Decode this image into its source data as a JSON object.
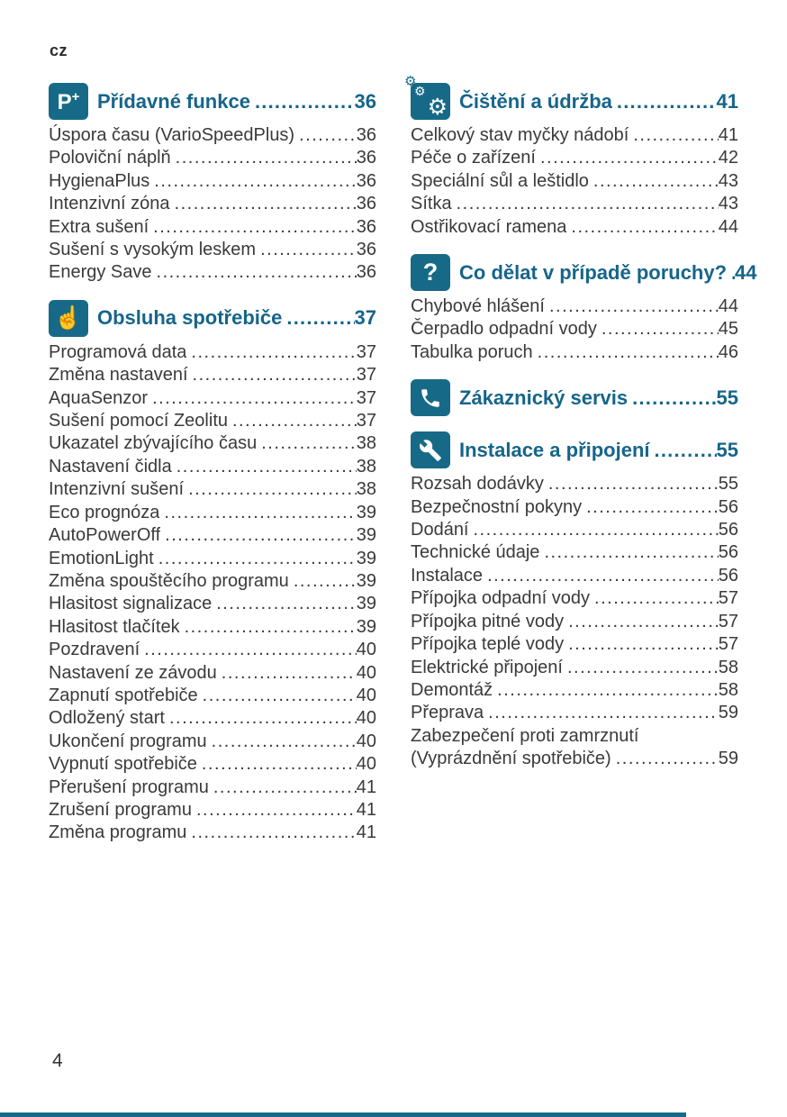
{
  "page": {
    "lang_label": "cz",
    "page_number": "4"
  },
  "colors": {
    "accent": "#176a87",
    "header_text": "#15658a",
    "body_text": "#3a3a3a"
  },
  "icons": {
    "p-plus-icon": "P+",
    "hand-press-icon": "☝",
    "gears-icon": "⚙",
    "question-mark-icon": "?"
  },
  "toc": {
    "columns": [
      {
        "sections": [
          {
            "id": "additional-functions",
            "icon": "p-plus-icon",
            "title": "Přídavné funkce",
            "page": "36",
            "entries": [
              {
                "label": "Úspora času (VarioSpeedPlus)",
                "page": "36"
              },
              {
                "label": "Poloviční náplň",
                "page": "36"
              },
              {
                "label": "HygienaPlus",
                "page": "36"
              },
              {
                "label": "Intenzivní zóna",
                "page": "36"
              },
              {
                "label": "Extra sušení",
                "page": "36"
              },
              {
                "label": "Sušení s vysokým leskem",
                "page": "36"
              },
              {
                "label": "Energy Save",
                "page": "36"
              }
            ]
          },
          {
            "id": "operating-appliance",
            "icon": "hand-press-icon",
            "title": "Obsluha spotřebiče",
            "page": "37",
            "entries": [
              {
                "label": "Programová data",
                "page": "37"
              },
              {
                "label": "Změna nastavení",
                "page": "37"
              },
              {
                "label": "AquaSenzor",
                "page": "37"
              },
              {
                "label": "Sušení pomocí Zeolitu",
                "page": "37"
              },
              {
                "label": "Ukazatel zbývajícího času",
                "page": "38"
              },
              {
                "label": "Nastavení čidla",
                "page": "38"
              },
              {
                "label": "Intenzivní sušení",
                "page": "38"
              },
              {
                "label": "Eco prognóza",
                "page": "39"
              },
              {
                "label": "AutoPowerOff",
                "page": "39"
              },
              {
                "label": "EmotionLight",
                "page": "39"
              },
              {
                "label": "Změna spouštěcího programu",
                "page": "39"
              },
              {
                "label": "Hlasitost signalizace",
                "page": "39"
              },
              {
                "label": "Hlasitost tlačítek",
                "page": "39"
              },
              {
                "label": "Pozdravení",
                "page": "40"
              },
              {
                "label": "Nastavení ze závodu",
                "page": "40"
              },
              {
                "label": "Zapnutí spotřebiče",
                "page": "40"
              },
              {
                "label": "Odložený start",
                "page": "40"
              },
              {
                "label": "Ukončení programu",
                "page": "40"
              },
              {
                "label": "Vypnutí spotřebiče",
                "page": "40"
              },
              {
                "label": "Přerušení programu",
                "page": "41"
              },
              {
                "label": "Zrušení programu",
                "page": "41"
              },
              {
                "label": "Změna programu",
                "page": "41"
              }
            ]
          }
        ]
      },
      {
        "sections": [
          {
            "id": "cleaning-maintenance",
            "icon": "gears-icon",
            "title": "Čištění a údržba",
            "page": "41",
            "entries": [
              {
                "label": "Celkový stav myčky nádobí",
                "page": "41"
              },
              {
                "label": "Péče o zařízení",
                "page": "42"
              },
              {
                "label": "Speciální sůl a leštidlo",
                "page": "43"
              },
              {
                "label": "Sítka",
                "page": "43"
              },
              {
                "label": "Ostřikovací ramena",
                "page": "44"
              }
            ]
          },
          {
            "id": "fault-help",
            "icon": "question-mark-icon",
            "title": "Co dělat v případě poruchy?",
            "page": "44",
            "entries": [
              {
                "label": "Chybové hlášení",
                "page": "44"
              },
              {
                "label": "Čerpadlo odpadní vody",
                "page": "45"
              },
              {
                "label": "Tabulka poruch",
                "page": "46"
              }
            ]
          },
          {
            "id": "customer-service",
            "icon": "phone-icon",
            "title": "Zákaznický servis",
            "page": "55",
            "entries": []
          },
          {
            "id": "installation-connection",
            "icon": "wrench-icon",
            "title": "Instalace a připojení",
            "page": "55",
            "entries": [
              {
                "label": "Rozsah dodávky",
                "page": "55"
              },
              {
                "label": "Bezpečnostní pokyny",
                "page": "56"
              },
              {
                "label": "Dodání",
                "page": "56"
              },
              {
                "label": "Technické údaje",
                "page": "56"
              },
              {
                "label": "Instalace",
                "page": "56"
              },
              {
                "label": "Přípojka odpadní vody",
                "page": "57"
              },
              {
                "label": "Přípojka pitné vody",
                "page": "57"
              },
              {
                "label": "Přípojka teplé vody",
                "page": "57"
              },
              {
                "label": "Elektrické připojení",
                "page": "58"
              },
              {
                "label": "Demontáž",
                "page": "58"
              },
              {
                "label": "Přeprava",
                "page": "59"
              },
              {
                "label": "Zabezpečení proti zamrznutí",
                "label2": "(Vyprázdnění spotřebiče)",
                "page": "59"
              }
            ]
          }
        ]
      }
    ]
  }
}
